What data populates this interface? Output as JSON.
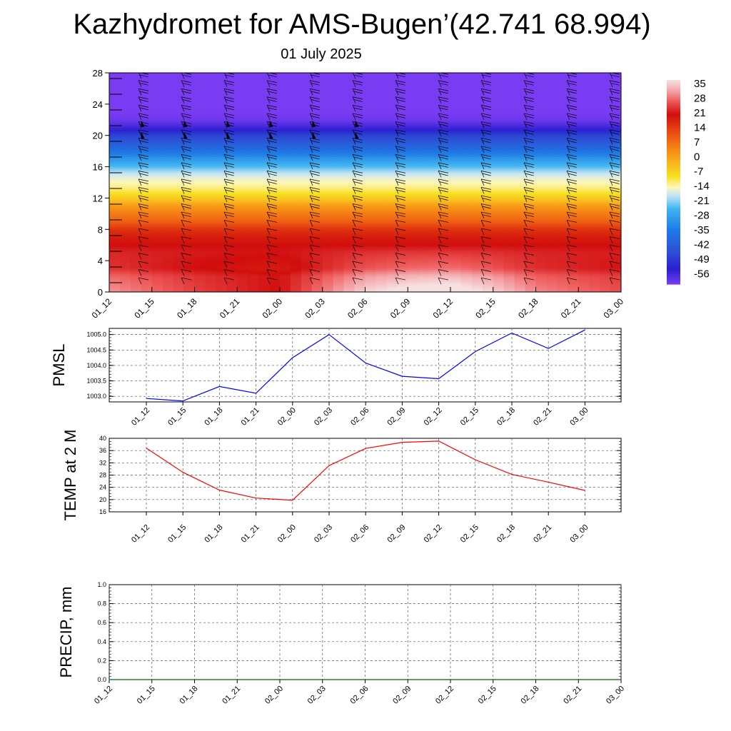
{
  "title": "Kazhydromet for AMS-Bugen’(42.741 68.994)",
  "subtitle": "01 July 2025",
  "chart_data": [
    {
      "type": "heatmap",
      "name": "temperature-cross-section",
      "x_ticks": [
        "01_12",
        "01_15",
        "01_18",
        "01_21",
        "02_00",
        "02_03",
        "02_06",
        "02_09",
        "02_12",
        "02_15",
        "02_18",
        "02_21",
        "03_00"
      ],
      "y_ticks": [
        0,
        4,
        8,
        12,
        16,
        20,
        24,
        28
      ],
      "ylim": [
        0,
        28
      ],
      "colorbar": {
        "levels": [
          "35",
          "28",
          "21",
          "14",
          "7",
          "0",
          "-7",
          "-14",
          "-21",
          "-28",
          "-35",
          "-42",
          "-49",
          "-56"
        ],
        "stops": [
          {
            "v": 38,
            "c": "#f7e0e0"
          },
          {
            "v": 33,
            "c": "#f4a4a8"
          },
          {
            "v": 28,
            "c": "#ee5a5a"
          },
          {
            "v": 22,
            "c": "#d10d0d"
          },
          {
            "v": 14,
            "c": "#e84a12"
          },
          {
            "v": 7,
            "c": "#f57d14"
          },
          {
            "v": 0,
            "c": "#f9b21c"
          },
          {
            "v": -7,
            "c": "#f8e020"
          },
          {
            "v": -12,
            "c": "#fff7bd"
          },
          {
            "v": -16,
            "c": "#bfe3f5"
          },
          {
            "v": -22,
            "c": "#40b3ef"
          },
          {
            "v": -32,
            "c": "#1e7ae6"
          },
          {
            "v": -42,
            "c": "#2d4fd6"
          },
          {
            "v": -50,
            "c": "#2b1fd0"
          },
          {
            "v": -57,
            "c": "#7a3cf2"
          }
        ]
      },
      "profile": [
        [
          0,
          32
        ],
        [
          2,
          29
        ],
        [
          3,
          25
        ],
        [
          5,
          24
        ],
        [
          7,
          20
        ],
        [
          8,
          17
        ],
        [
          9,
          11
        ],
        [
          11,
          3
        ],
        [
          12,
          -4
        ],
        [
          13,
          -9
        ],
        [
          14,
          -12
        ],
        [
          15,
          -15
        ],
        [
          16,
          -21
        ],
        [
          17,
          -27
        ],
        [
          18,
          -34
        ],
        [
          19,
          -39
        ],
        [
          20,
          -44
        ],
        [
          21,
          -52
        ],
        [
          22,
          -56
        ],
        [
          23,
          -57
        ],
        [
          28,
          -57
        ]
      ],
      "surface_warm_anomaly": [
        0,
        -3,
        -6,
        -8,
        -10,
        -2,
        5,
        8,
        9,
        5,
        -1,
        -3,
        -5
      ],
      "wind_barbs": "plotted"
    },
    {
      "type": "line",
      "name": "PMSL",
      "ylabel": "PMSL",
      "categories": [
        "01_12",
        "01_15",
        "01_18",
        "01_21",
        "02_00",
        "02_03",
        "02_06",
        "02_09",
        "02_12",
        "02_15",
        "02_18",
        "02_21",
        "03_00"
      ],
      "values": [
        1002.93,
        1002.85,
        1003.32,
        1003.1,
        1004.25,
        1005.0,
        1004.08,
        1003.65,
        1003.57,
        1004.45,
        1005.05,
        1004.55,
        1005.15
      ],
      "y_ticks": [
        "1003.0",
        "1003.5",
        "1004.0",
        "1004.5",
        "1005.0"
      ],
      "ylim": [
        1002.82,
        1005.2
      ],
      "color": "#0000ff",
      "x_ticks": [
        "01_12",
        "01_15",
        "01_18",
        "01_21",
        "02_00",
        "02_03",
        "02_06",
        "02_09",
        "02_12",
        "02_15",
        "02_18",
        "02_21",
        "03_00"
      ]
    },
    {
      "type": "line",
      "name": "TEMP at 2 M",
      "ylabel": "TEMP at 2 M",
      "categories": [
        "01_12",
        "01_15",
        "01_18",
        "01_21",
        "02_00",
        "02_03",
        "02_06",
        "02_09",
        "02_12",
        "02_15",
        "02_18",
        "02_21",
        "03_00"
      ],
      "values": [
        36.8,
        28.9,
        23.1,
        20.5,
        19.8,
        31.1,
        36.7,
        38.7,
        39.1,
        33.0,
        28.2,
        25.7,
        23.0
      ],
      "y_ticks": [
        "16",
        "20",
        "24",
        "28",
        "32",
        "36",
        "40"
      ],
      "ylim": [
        16,
        40
      ],
      "color": "#ff0000",
      "x_ticks": [
        "01_12",
        "01_15",
        "01_18",
        "01_21",
        "02_00",
        "02_03",
        "02_06",
        "02_09",
        "02_12",
        "02_15",
        "02_18",
        "02_21",
        "03_00"
      ]
    },
    {
      "type": "line",
      "name": "PRECIP, mm",
      "ylabel": "PRECIP, mm",
      "categories": [
        "01_12",
        "01_15",
        "01_18",
        "01_21",
        "02_00",
        "02_03",
        "02_06",
        "02_09",
        "02_12",
        "02_15",
        "02_18",
        "02_21",
        "03_00"
      ],
      "values": [
        0,
        0,
        0,
        0,
        0,
        0,
        0,
        0,
        0,
        0,
        0,
        0,
        0
      ],
      "y_ticks": [
        "0.0",
        "0.2",
        "0.4",
        "0.6",
        "0.8",
        "1.0"
      ],
      "ylim": [
        0,
        1
      ],
      "color": "#006400",
      "x_ticks": [
        "01_12",
        "01_15",
        "01_18",
        "01_21",
        "02_00",
        "02_03",
        "02_06",
        "02_09",
        "02_12",
        "02_15",
        "02_18",
        "02_21",
        "03_00"
      ]
    }
  ]
}
